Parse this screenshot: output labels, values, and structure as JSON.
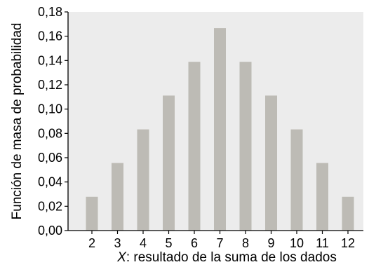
{
  "chart_data": {
    "type": "bar",
    "categories": [
      "2",
      "3",
      "4",
      "5",
      "6",
      "7",
      "8",
      "9",
      "10",
      "11",
      "12"
    ],
    "values": [
      0.0278,
      0.0556,
      0.0833,
      0.1111,
      0.1389,
      0.1667,
      0.1389,
      0.1111,
      0.0833,
      0.0556,
      0.0278
    ],
    "ylim": [
      0,
      0.18
    ],
    "yticks": [
      "0,00",
      "0,02",
      "0,04",
      "0,06",
      "0,08",
      "0,10",
      "0,12",
      "0,14",
      "0,16",
      "0,18"
    ],
    "ylabel": "Función de masa de probabilidad",
    "xlabel_var": "X",
    "xlabel_rest": ": resultado de la suma de los dados",
    "grid": false,
    "colors": {
      "plot_background": "#ececec",
      "bar_fill": "#bdbbb5",
      "axis": "#000000"
    }
  }
}
